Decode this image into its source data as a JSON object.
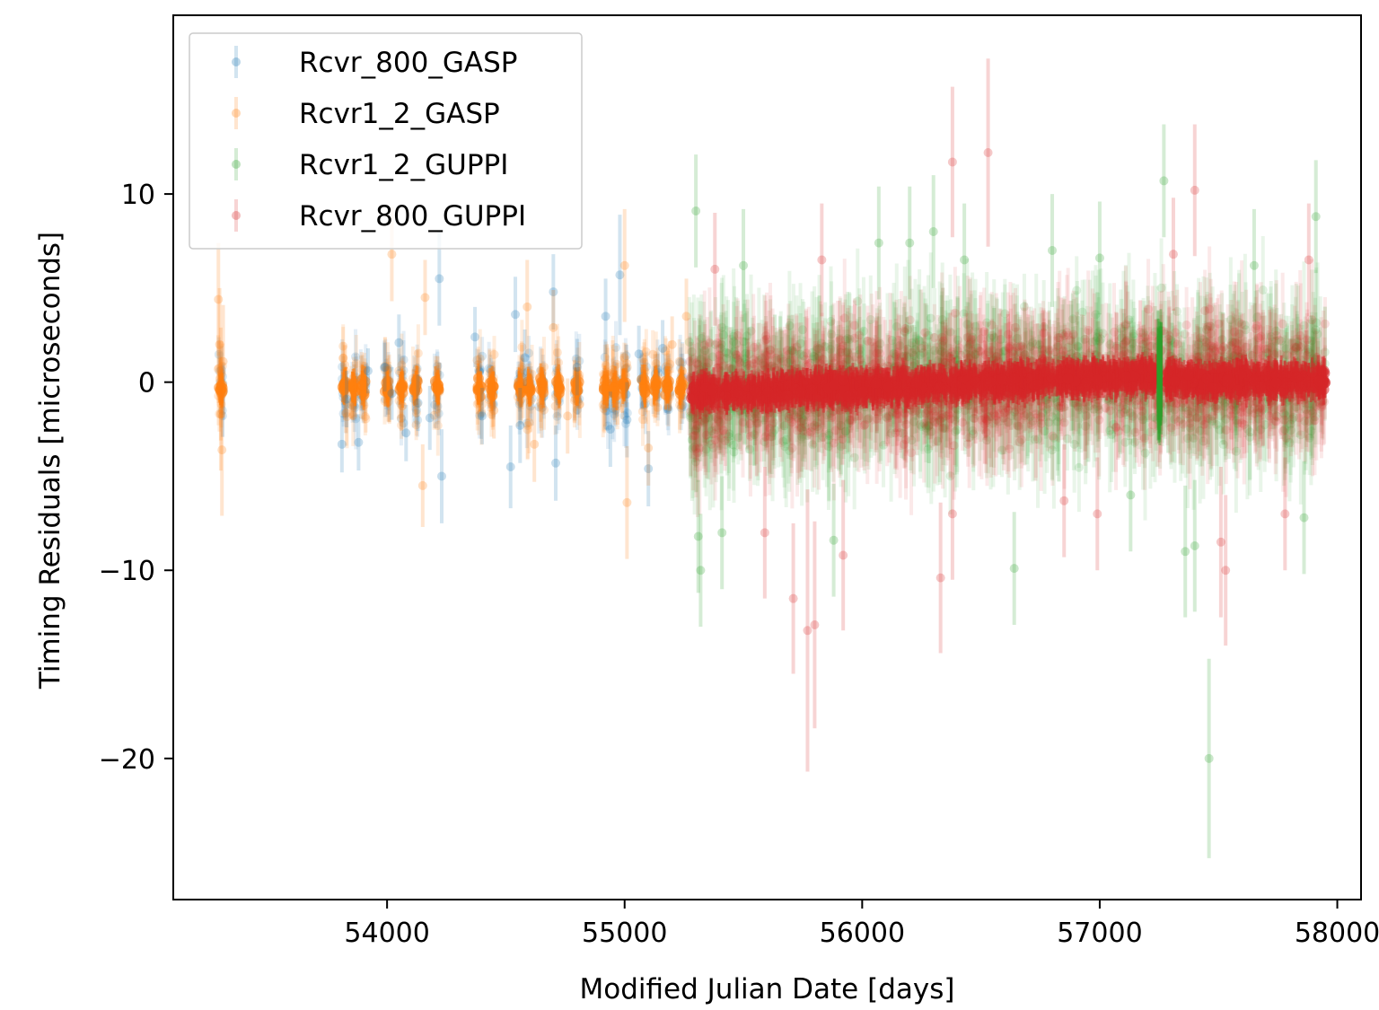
{
  "chart_data": {
    "type": "scatter",
    "title": "",
    "xlabel": "Modified Julian Date [days]",
    "ylabel": "Timing Residuals [microseconds]",
    "xlim": [
      53100,
      58100
    ],
    "ylim": [
      -27.5,
      19.5
    ],
    "x_ticks": [
      54000,
      55000,
      56000,
      57000,
      58000
    ],
    "x_tick_labels": [
      "54000",
      "55000",
      "56000",
      "57000",
      "58000"
    ],
    "y_ticks": [
      10,
      0,
      -10,
      -20
    ],
    "y_tick_labels": [
      "10",
      "0",
      "−10",
      "−20"
    ],
    "grid": false,
    "legend_position": "top-left",
    "error_bars": true,
    "series": [
      {
        "name": "Rcvr_800_GASP",
        "color": "#1f77b4",
        "points": [
          {
            "x": 53810,
            "y": -3.3,
            "err": 1.5
          },
          {
            "x": 53830,
            "y": -0.9,
            "err": 1.5
          },
          {
            "x": 53880,
            "y": -3.2,
            "err": 1.5
          },
          {
            "x": 53920,
            "y": 0.6,
            "err": 1.2
          },
          {
            "x": 53990,
            "y": 0.8,
            "err": 1.3
          },
          {
            "x": 54020,
            "y": -0.6,
            "err": 1.4
          },
          {
            "x": 54050,
            "y": 2.1,
            "err": 1.5
          },
          {
            "x": 54080,
            "y": -2.7,
            "err": 1.5
          },
          {
            "x": 54130,
            "y": -1.1,
            "err": 1.5
          },
          {
            "x": 54180,
            "y": -1.9,
            "err": 1.7
          },
          {
            "x": 54220,
            "y": 5.5,
            "err": 2.5
          },
          {
            "x": 54230,
            "y": -5.0,
            "err": 2.5
          },
          {
            "x": 54370,
            "y": 2.4,
            "err": 1.6
          },
          {
            "x": 54400,
            "y": -1.8,
            "err": 1.5
          },
          {
            "x": 54520,
            "y": -4.5,
            "err": 2.2
          },
          {
            "x": 54540,
            "y": 3.6,
            "err": 2.0
          },
          {
            "x": 54560,
            "y": -2.3,
            "err": 2.0
          },
          {
            "x": 54580,
            "y": 1.3,
            "err": 1.5
          },
          {
            "x": 54700,
            "y": 4.8,
            "err": 2.0
          },
          {
            "x": 54710,
            "y": -4.3,
            "err": 2.0
          },
          {
            "x": 54800,
            "y": 0.8,
            "err": 1.5
          },
          {
            "x": 54920,
            "y": 3.5,
            "err": 2.0
          },
          {
            "x": 54940,
            "y": -2.5,
            "err": 2.0
          },
          {
            "x": 54980,
            "y": 5.7,
            "err": 3.2
          },
          {
            "x": 55010,
            "y": -2.0,
            "err": 2.0
          },
          {
            "x": 55060,
            "y": 1.5,
            "err": 1.5
          },
          {
            "x": 55100,
            "y": -4.6,
            "err": 2.0
          },
          {
            "x": 55160,
            "y": 1.8,
            "err": 1.5
          }
        ]
      },
      {
        "name": "Rcvr1_2_GASP",
        "color": "#ff7f0e",
        "points": [
          {
            "x": 53290,
            "y": 4.4,
            "err": 3.0
          },
          {
            "x": 53295,
            "y": 2.0,
            "err": 3.0
          },
          {
            "x": 53300,
            "y": -1.7,
            "err": 3.0
          },
          {
            "x": 53305,
            "y": -3.6,
            "err": 3.5
          },
          {
            "x": 53310,
            "y": 1.1,
            "err": 3.0
          },
          {
            "x": 53300,
            "y": -0.1,
            "err": 3.0
          },
          {
            "x": 54020,
            "y": 6.8,
            "err": 2.5
          },
          {
            "x": 54150,
            "y": -5.5,
            "err": 2.2
          },
          {
            "x": 54160,
            "y": 4.5,
            "err": 2.0
          },
          {
            "x": 54450,
            "y": -1.5,
            "err": 1.5
          },
          {
            "x": 54590,
            "y": 4.0,
            "err": 2.5
          },
          {
            "x": 54620,
            "y": -3.3,
            "err": 2.0
          },
          {
            "x": 54700,
            "y": 2.9,
            "err": 2.0
          },
          {
            "x": 54760,
            "y": -1.8,
            "err": 2.0
          },
          {
            "x": 55000,
            "y": 6.2,
            "err": 3.0
          },
          {
            "x": 55010,
            "y": -6.4,
            "err": 3.0
          },
          {
            "x": 55100,
            "y": -3.5,
            "err": 2.0
          },
          {
            "x": 55200,
            "y": 2.0,
            "err": 1.5
          },
          {
            "x": 55260,
            "y": 3.5,
            "err": 2.0
          }
        ]
      },
      {
        "name": "Rcvr1_2_GUPPI",
        "color": "#2ca02c",
        "points": [
          {
            "x": 55300,
            "y": 9.1,
            "err": 3.0
          },
          {
            "x": 55310,
            "y": -8.2,
            "err": 3.0
          },
          {
            "x": 55320,
            "y": -10.0,
            "err": 3.0
          },
          {
            "x": 55410,
            "y": -8.0,
            "err": 3.0
          },
          {
            "x": 55500,
            "y": 6.2,
            "err": 3.0
          },
          {
            "x": 55880,
            "y": -8.4,
            "err": 3.0
          },
          {
            "x": 56070,
            "y": 7.4,
            "err": 3.0
          },
          {
            "x": 56200,
            "y": 7.4,
            "err": 3.0
          },
          {
            "x": 56300,
            "y": 8.0,
            "err": 3.0
          },
          {
            "x": 56430,
            "y": 6.5,
            "err": 3.0
          },
          {
            "x": 56640,
            "y": -9.9,
            "err": 3.0
          },
          {
            "x": 56800,
            "y": 7.0,
            "err": 3.0
          },
          {
            "x": 57000,
            "y": 6.6,
            "err": 3.0
          },
          {
            "x": 57130,
            "y": -6.0,
            "err": 3.0
          },
          {
            "x": 57270,
            "y": 10.7,
            "err": 3.0
          },
          {
            "x": 57360,
            "y": -9.0,
            "err": 3.5
          },
          {
            "x": 57400,
            "y": -8.7,
            "err": 3.5
          },
          {
            "x": 57460,
            "y": -20.0,
            "err": 5.3
          },
          {
            "x": 57650,
            "y": 6.2,
            "err": 3.0
          },
          {
            "x": 57860,
            "y": -7.2,
            "err": 3.0
          },
          {
            "x": 57910,
            "y": 8.8,
            "err": 3.0
          }
        ]
      },
      {
        "name": "Rcvr_800_GUPPI",
        "color": "#d62728",
        "points": [
          {
            "x": 55380,
            "y": 6.0,
            "err": 3.0
          },
          {
            "x": 55590,
            "y": -8.0,
            "err": 3.5
          },
          {
            "x": 55710,
            "y": -11.5,
            "err": 4.0
          },
          {
            "x": 55770,
            "y": -13.2,
            "err": 7.5
          },
          {
            "x": 55800,
            "y": -12.9,
            "err": 5.5
          },
          {
            "x": 55920,
            "y": -9.2,
            "err": 4.0
          },
          {
            "x": 55830,
            "y": 6.5,
            "err": 3.0
          },
          {
            "x": 56330,
            "y": -10.4,
            "err": 4.0
          },
          {
            "x": 56380,
            "y": 11.7,
            "err": 4.0
          },
          {
            "x": 56380,
            "y": -7.0,
            "err": 3.5
          },
          {
            "x": 56530,
            "y": 12.2,
            "err": 5.0
          },
          {
            "x": 56850,
            "y": -6.3,
            "err": 3.0
          },
          {
            "x": 56990,
            "y": -7.0,
            "err": 3.0
          },
          {
            "x": 57310,
            "y": 6.8,
            "err": 3.0
          },
          {
            "x": 57400,
            "y": 10.2,
            "err": 3.5
          },
          {
            "x": 57510,
            "y": -8.5,
            "err": 4.0
          },
          {
            "x": 57530,
            "y": -10.0,
            "err": 4.0
          },
          {
            "x": 57780,
            "y": -7.0,
            "err": 3.0
          },
          {
            "x": 57880,
            "y": 6.5,
            "err": 3.0
          }
        ]
      }
    ]
  }
}
